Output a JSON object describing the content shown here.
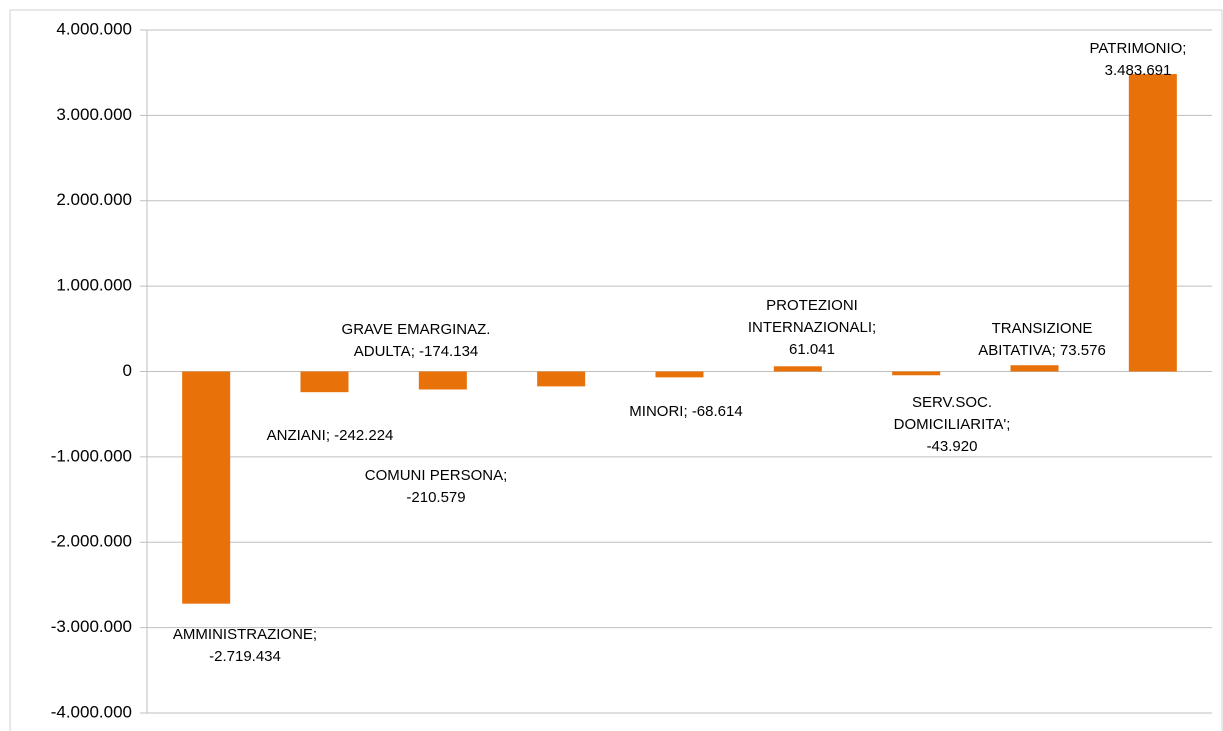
{
  "chart_data": {
    "type": "bar",
    "categories": [
      "AMMINISTRAZIONE",
      "ANZIANI",
      "COMUNI PERSONA",
      "GRAVE EMARGINAZ. ADULTA",
      "MINORI",
      "PROTEZIONI INTERNAZIONALI",
      "SERV.SOC. DOMICILIARITA'",
      "TRANSIZIONE ABITATIVA",
      "PATRIMONIO"
    ],
    "values": [
      -2719434,
      -242224,
      -210579,
      -174134,
      -68614,
      61041,
      -43920,
      73576,
      3483691
    ],
    "value_labels": [
      "-2.719.434",
      "-242.224",
      "-210.579",
      "-174.134",
      "-68.614",
      "61.041",
      "-43.920",
      "73.576",
      "3.483.691"
    ],
    "label_separator": ";",
    "color": "#e8710a",
    "ylim": [
      -4000000,
      4000000
    ],
    "yticks": [
      {
        "value": -4000000,
        "label": "-4.000.000"
      },
      {
        "value": -3000000,
        "label": "-3.000.000"
      },
      {
        "value": -2000000,
        "label": "-2.000.000"
      },
      {
        "value": -1000000,
        "label": "-1.000.000"
      },
      0,
      {
        "value": 1000000,
        "label": "1.000.000"
      },
      {
        "value": 2000000,
        "label": "2.000.000"
      },
      {
        "value": 3000000,
        "label": "3.000.000"
      },
      {
        "value": 4000000,
        "label": "4.000.000"
      }
    ],
    "grid": true
  }
}
